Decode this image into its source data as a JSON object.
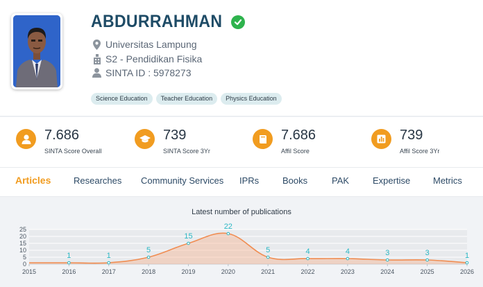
{
  "profile": {
    "name": "ABDURRAHMAN",
    "affiliation": "Universitas Lampung",
    "program": "S2 - Pendidikan Fisika",
    "sinta_id": "SINTA ID : 5978273",
    "tags": [
      "Science Education",
      "Teacher Education",
      "Physics Education"
    ]
  },
  "scores": [
    {
      "value": "7.686",
      "label": "SINTA Score Overall",
      "icon": "user-icon"
    },
    {
      "value": "739",
      "label": "SINTA Score 3Yr",
      "icon": "graduation-cap-icon"
    },
    {
      "value": "7.686",
      "label": "Affil Score",
      "icon": "book-icon"
    },
    {
      "value": "739",
      "label": "Affil Score 3Yr",
      "icon": "bar-chart-icon"
    }
  ],
  "tabs": [
    "Articles",
    "Researches",
    "Community Services",
    "IPRs",
    "Books",
    "PAK",
    "Expertise",
    "Metrics"
  ],
  "colors": {
    "accent": "#f19c20",
    "title": "#1e4b66",
    "verified": "#2eb34d",
    "tag_bg": "#dcecef",
    "chart_line": "#f08d52",
    "chart_label": "#2ab7c4"
  },
  "chart_data": {
    "type": "area",
    "title": "Latest number of publications",
    "x": [
      2015,
      2016,
      2017,
      2018,
      2019,
      2020,
      2021,
      2022,
      2023,
      2024,
      2025,
      2026
    ],
    "y_ticks": [
      0,
      5,
      10,
      15,
      20,
      25
    ],
    "x_ticks": [
      "2015",
      "2016",
      "2017",
      "2018",
      "2019",
      "2020",
      "2021",
      "2022",
      "2023",
      "2024",
      "2025",
      "2026"
    ],
    "ylim": [
      0,
      25
    ],
    "series": [
      {
        "points": [
          {
            "x": 2016,
            "y": 1
          },
          {
            "x": 2017,
            "y": 1
          },
          {
            "x": 2018,
            "y": 5
          },
          {
            "x": 2019,
            "y": 15
          },
          {
            "x": 2020,
            "y": 22
          },
          {
            "x": 2021,
            "y": 5
          },
          {
            "x": 2022,
            "y": 4
          },
          {
            "x": 2023,
            "y": 4
          },
          {
            "x": 2024,
            "y": 3
          },
          {
            "x": 2025,
            "y": 3
          },
          {
            "x": 2026,
            "y": 1
          }
        ]
      }
    ],
    "grid": true
  }
}
